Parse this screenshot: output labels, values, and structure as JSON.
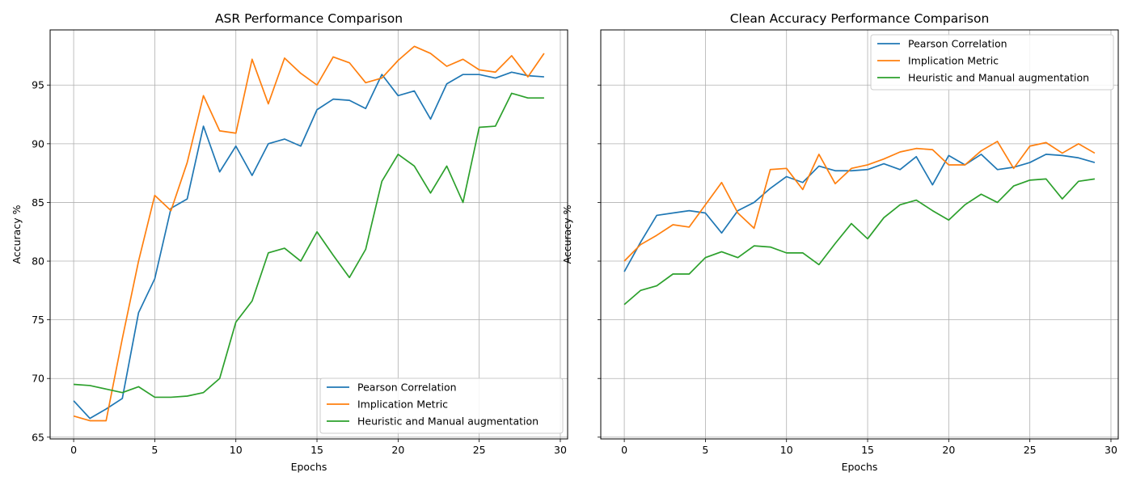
{
  "chart_data": [
    {
      "type": "line",
      "title": "ASR Performance Comparison",
      "xlabel": "Epochs",
      "ylabel": "Accuracy %",
      "xlim": [
        -1.45,
        30.45
      ],
      "ylim": [
        64.85,
        99.7
      ],
      "xticks": [
        0,
        5,
        10,
        15,
        20,
        25,
        30
      ],
      "yticks": [
        65,
        70,
        75,
        80,
        85,
        90,
        95
      ],
      "grid": true,
      "legend_position": "lower-right",
      "x": [
        0,
        1,
        2,
        3,
        4,
        5,
        6,
        7,
        8,
        9,
        10,
        11,
        12,
        13,
        14,
        15,
        16,
        17,
        18,
        19,
        20,
        21,
        22,
        23,
        24,
        25,
        26,
        27,
        28,
        29
      ],
      "series": [
        {
          "name": "Pearson Correlation",
          "color": "#1f77b4",
          "values": [
            68.1,
            66.6,
            67.4,
            68.3,
            75.6,
            78.5,
            84.5,
            85.3,
            91.5,
            87.6,
            89.8,
            87.3,
            90.0,
            90.4,
            89.8,
            92.9,
            93.8,
            93.7,
            93.0,
            95.9,
            94.1,
            94.5,
            92.1,
            95.1,
            95.9,
            95.9,
            95.6,
            96.1,
            95.8,
            95.7
          ]
        },
        {
          "name": "Implication Metric",
          "color": "#ff7f0e",
          "values": [
            66.8,
            66.4,
            66.4,
            73.4,
            80.0,
            85.6,
            84.3,
            88.4,
            94.1,
            91.1,
            90.9,
            97.2,
            93.4,
            97.3,
            96.0,
            95.0,
            97.4,
            96.9,
            95.2,
            95.6,
            97.1,
            98.3,
            97.7,
            96.6,
            97.2,
            96.3,
            96.1,
            97.5,
            95.7,
            97.7
          ]
        },
        {
          "name": "Heuristic and Manual augmentation",
          "color": "#2ca02c",
          "values": [
            69.5,
            69.4,
            69.1,
            68.8,
            69.3,
            68.4,
            68.4,
            68.5,
            68.8,
            70.0,
            74.8,
            76.6,
            80.7,
            81.1,
            80.0,
            82.5,
            80.5,
            78.6,
            81.0,
            86.8,
            89.1,
            88.1,
            85.8,
            88.1,
            85.0,
            91.4,
            91.5,
            94.3,
            93.9,
            93.9
          ]
        }
      ]
    },
    {
      "type": "line",
      "title": "Clean Accuracy Performance Comparison",
      "xlabel": "Epochs",
      "ylabel": "Accuracy %",
      "xlim": [
        -1.45,
        30.45
      ],
      "ylim": [
        64.85,
        99.7
      ],
      "xticks": [
        0,
        5,
        10,
        15,
        20,
        25,
        30
      ],
      "yticks": [
        65,
        70,
        75,
        80,
        85,
        90,
        95
      ],
      "show_ytick_labels": false,
      "grid": true,
      "legend_position": "upper-right",
      "x": [
        0,
        1,
        2,
        3,
        4,
        5,
        6,
        7,
        8,
        9,
        10,
        11,
        12,
        13,
        14,
        15,
        16,
        17,
        18,
        19,
        20,
        21,
        22,
        23,
        24,
        25,
        26,
        27,
        28,
        29
      ],
      "series": [
        {
          "name": "Pearson Correlation",
          "color": "#1f77b4",
          "values": [
            79.1,
            81.6,
            83.9,
            84.1,
            84.3,
            84.1,
            82.4,
            84.3,
            85.0,
            86.2,
            87.2,
            86.7,
            88.1,
            87.7,
            87.7,
            87.8,
            88.3,
            87.8,
            88.9,
            86.5,
            89.0,
            88.2,
            89.1,
            87.8,
            88.0,
            88.4,
            89.1,
            89.0,
            88.8,
            88.4
          ]
        },
        {
          "name": "Implication Metric",
          "color": "#ff7f0e",
          "values": [
            80.0,
            81.4,
            82.2,
            83.1,
            82.9,
            84.8,
            86.7,
            84.1,
            82.8,
            87.8,
            87.9,
            86.1,
            89.1,
            86.6,
            87.9,
            88.2,
            88.7,
            89.3,
            89.6,
            89.5,
            88.2,
            88.2,
            89.4,
            90.2,
            87.9,
            89.8,
            90.1,
            89.2,
            90.0,
            89.2
          ]
        },
        {
          "name": "Heuristic and Manual augmentation",
          "color": "#2ca02c",
          "values": [
            76.3,
            77.5,
            77.9,
            78.9,
            78.9,
            80.3,
            80.8,
            80.3,
            81.3,
            81.2,
            80.7,
            80.7,
            79.7,
            81.5,
            83.2,
            81.9,
            83.7,
            84.8,
            85.2,
            84.3,
            83.5,
            84.8,
            85.7,
            85.0,
            86.4,
            86.9,
            87.0,
            85.3,
            86.8,
            87.0
          ]
        }
      ]
    }
  ]
}
